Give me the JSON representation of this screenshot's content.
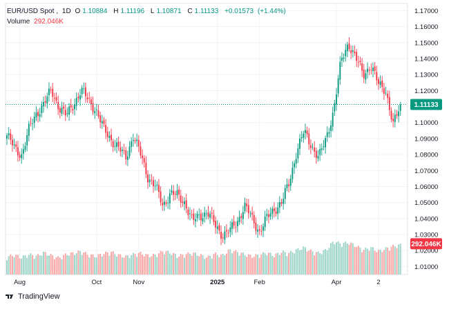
{
  "legend": {
    "symbol": "EUR/USD Spot",
    "interval": "1D",
    "open_label": "O",
    "open": "1.10884",
    "high_label": "H",
    "high": "1.11196",
    "low_label": "L",
    "low": "1.10871",
    "close_label": "C",
    "close": "1.11133",
    "change": "+0.01573",
    "change_pct": "(+1.44%)",
    "volume_label": "Volume",
    "volume": "292.046K"
  },
  "branding": {
    "name": "TradingView"
  },
  "colors": {
    "up": "#089981",
    "down": "#f23645",
    "up_volume": "#9fd6c9",
    "down_volume": "#f7a9a7",
    "grid": "#f0f3fa",
    "text": "#131722"
  },
  "chart_data": {
    "type": "candlestick",
    "title": "EUR/USD Spot, 1D",
    "price_axis": {
      "ticks": [
        1.17,
        1.16,
        1.15,
        1.14,
        1.13,
        1.12,
        1.11,
        1.1,
        1.09,
        1.08,
        1.07,
        1.06,
        1.05,
        1.04,
        1.03,
        1.02,
        1.01
      ],
      "tick_labels": [
        "1.17000",
        "1.16000",
        "1.15000",
        "1.14000",
        "1.13000",
        "1.12000",
        "1.11000",
        "1.10000",
        "1.09000",
        "1.08000",
        "1.07000",
        "1.06000",
        "1.05000",
        "1.04000",
        "1.03000",
        "1.02000",
        "1.01000"
      ],
      "range": [
        1.005,
        1.1745
      ],
      "last_price": 1.11133,
      "last_price_label": "1.11133",
      "volume_tag_label": "292.046K"
    },
    "time_axis": {
      "labels": [
        {
          "text": "Aug",
          "bar": 7,
          "bold": false
        },
        {
          "text": "Oct",
          "bar": 49,
          "bold": false
        },
        {
          "text": "Nov",
          "bar": 72,
          "bold": false
        },
        {
          "text": "2025",
          "bar": 115,
          "bold": true
        },
        {
          "text": "Feb",
          "bar": 138,
          "bold": false
        },
        {
          "text": "Apr",
          "bar": 180,
          "bold": false
        },
        {
          "text": "2",
          "bar": 203,
          "bold": false
        }
      ]
    },
    "key_prices": [
      1.092,
      1.084,
      1.08,
      1.096,
      1.106,
      1.112,
      1.12,
      1.11,
      1.104,
      1.112,
      1.12,
      1.114,
      1.108,
      1.096,
      1.09,
      1.084,
      1.078,
      1.092,
      1.08,
      1.066,
      1.06,
      1.048,
      1.056,
      1.054,
      1.05,
      1.038,
      1.042,
      1.044,
      1.036,
      1.03,
      1.032,
      1.038,
      1.048,
      1.04,
      1.032,
      1.04,
      1.046,
      1.05,
      1.062,
      1.082,
      1.094,
      1.086,
      1.078,
      1.09,
      1.108,
      1.138,
      1.15,
      1.14,
      1.13,
      1.136,
      1.124,
      1.121,
      1.098,
      1.111
    ],
    "key_volume": [
      0.27,
      0.3,
      0.26,
      0.31,
      0.28,
      0.34,
      0.29,
      0.25,
      0.31,
      0.33,
      0.36,
      0.3,
      0.28,
      0.32,
      0.35,
      0.3,
      0.27,
      0.31,
      0.33,
      0.29,
      0.3,
      0.36,
      0.34,
      0.28,
      0.31,
      0.33,
      0.3,
      0.26,
      0.32,
      0.29,
      0.38,
      0.35,
      0.31,
      0.28,
      0.3,
      0.34,
      0.29,
      0.35,
      0.33,
      0.38,
      0.42,
      0.36,
      0.33,
      0.38,
      0.52,
      0.48,
      0.5,
      0.45,
      0.38,
      0.42,
      0.36,
      0.4,
      0.44,
      0.46
    ],
    "bars": 216,
    "volume_max_k": 440
  }
}
